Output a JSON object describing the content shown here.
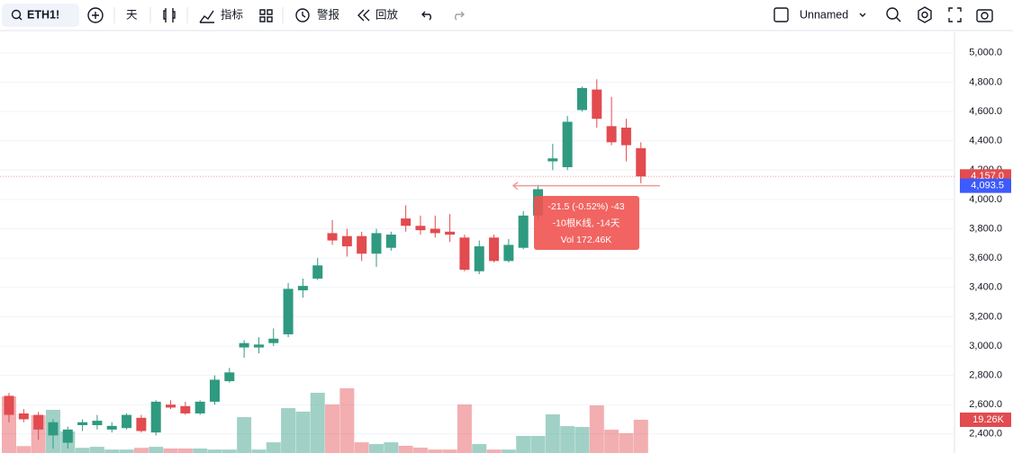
{
  "toolbar": {
    "symbol": "ETH1!",
    "interval": "天",
    "indicators": "指标",
    "alerts": "警报",
    "replay": "回放",
    "layout_name": "Unnamed"
  },
  "chart_data": {
    "type": "candlestick",
    "up_color": "#2f9a80",
    "down_color": "#e24b4f",
    "ylim": [
      2270,
      5140
    ],
    "yticks": [
      {
        "value": 2400,
        "label": "2,400.0"
      },
      {
        "value": 2600,
        "label": "2,600.0"
      },
      {
        "value": 2800,
        "label": "2,800.0"
      },
      {
        "value": 3000,
        "label": "3,000.0"
      },
      {
        "value": 3200,
        "label": "3,200.0"
      },
      {
        "value": 3400,
        "label": "3,400.0"
      },
      {
        "value": 3600,
        "label": "3,600.0"
      },
      {
        "value": 3800,
        "label": "3,800.0"
      },
      {
        "value": 4000,
        "label": "4,000.0"
      },
      {
        "value": 4200,
        "label": "4,200.0"
      },
      {
        "value": 4400,
        "label": "4,400.0"
      },
      {
        "value": 4600,
        "label": "4,600.0"
      },
      {
        "value": 4800,
        "label": "4,800.0"
      },
      {
        "value": 5000,
        "label": "5,000.0"
      }
    ],
    "grid": true,
    "open": [
      2660,
      2540,
      2530,
      2390,
      2340,
      2460,
      2460,
      2430,
      2440,
      2510,
      2410,
      2600,
      2590,
      2540,
      2620,
      2760,
      2990,
      2990,
      3020,
      3080,
      3380,
      3460,
      3770,
      3750,
      3750,
      3630,
      3670,
      3870,
      3820,
      3800,
      3780,
      3740,
      3510,
      3740,
      3580,
      3670,
      3890,
      4260,
      4220,
      4610,
      4750,
      4500,
      4490,
      4350
    ],
    "high": [
      2680,
      2570,
      2550,
      2500,
      2450,
      2500,
      2530,
      2480,
      2540,
      2530,
      2630,
      2630,
      2620,
      2630,
      2800,
      2850,
      3040,
      3060,
      3120,
      3430,
      3460,
      3600,
      3860,
      3800,
      3780,
      3800,
      3780,
      3960,
      3890,
      3890,
      3900,
      3760,
      3720,
      3760,
      3730,
      3920,
      4100,
      4380,
      4570,
      4770,
      4820,
      4700,
      4550,
      4390
    ],
    "low": [
      2480,
      2480,
      2360,
      2300,
      2300,
      2420,
      2430,
      2410,
      2430,
      2410,
      2390,
      2570,
      2530,
      2530,
      2600,
      2750,
      2920,
      2950,
      3000,
      3060,
      3330,
      3450,
      3690,
      3610,
      3580,
      3540,
      3650,
      3780,
      3760,
      3740,
      3710,
      3510,
      3490,
      3570,
      3570,
      3660,
      3860,
      4200,
      4200,
      4600,
      4490,
      4370,
      4260,
      4110
    ],
    "close": [
      2530,
      2500,
      2430,
      2480,
      2430,
      2480,
      2490,
      2455,
      2530,
      2420,
      2620,
      2580,
      2540,
      2620,
      2770,
      2820,
      3020,
      3010,
      3050,
      3390,
      3410,
      3550,
      3720,
      3680,
      3630,
      3770,
      3760,
      3820,
      3790,
      3770,
      3760,
      3520,
      3680,
      3580,
      3690,
      3890,
      4070,
      4280,
      4530,
      4760,
      4550,
      4390,
      4370,
      4157
    ],
    "volume": {
      "values": [
        32.8,
        4,
        21.9,
        25,
        12.5,
        3,
        3.6,
        2,
        2,
        3,
        3.6,
        2.6,
        2.6,
        2.6,
        2,
        2,
        20.8,
        2,
        6.2,
        26,
        24,
        34.9,
        28.1,
        37.5,
        6.2,
        5.2,
        6.2,
        4.2,
        3.1,
        2,
        2,
        28.1,
        5.2,
        2,
        2,
        9.9,
        9.9,
        22.4,
        15.6,
        15.1,
        27.6,
        13.5,
        11.5,
        19.26
      ],
      "value_labels": [
        null,
        null,
        null,
        null,
        null,
        null,
        null,
        null,
        null,
        null,
        null,
        null,
        null,
        null,
        null,
        null,
        null,
        null,
        null,
        null,
        null,
        null,
        null,
        null,
        null,
        null,
        null,
        null,
        null,
        null,
        null,
        null,
        null,
        null,
        null,
        null,
        null,
        null,
        null,
        null,
        null,
        null,
        null,
        "19.26K"
      ]
    },
    "price_tags": [
      {
        "value": 4157,
        "label": "4,157.0",
        "color": "#e24b4f"
      },
      {
        "value": 4093.5,
        "label": "4,093.5",
        "color": "#3d5afe"
      }
    ],
    "measure": {
      "lines": [
        "-21.5 (-0.52%) -43",
        "-10根K线, -14天",
        "Vol 172.46K"
      ]
    }
  }
}
